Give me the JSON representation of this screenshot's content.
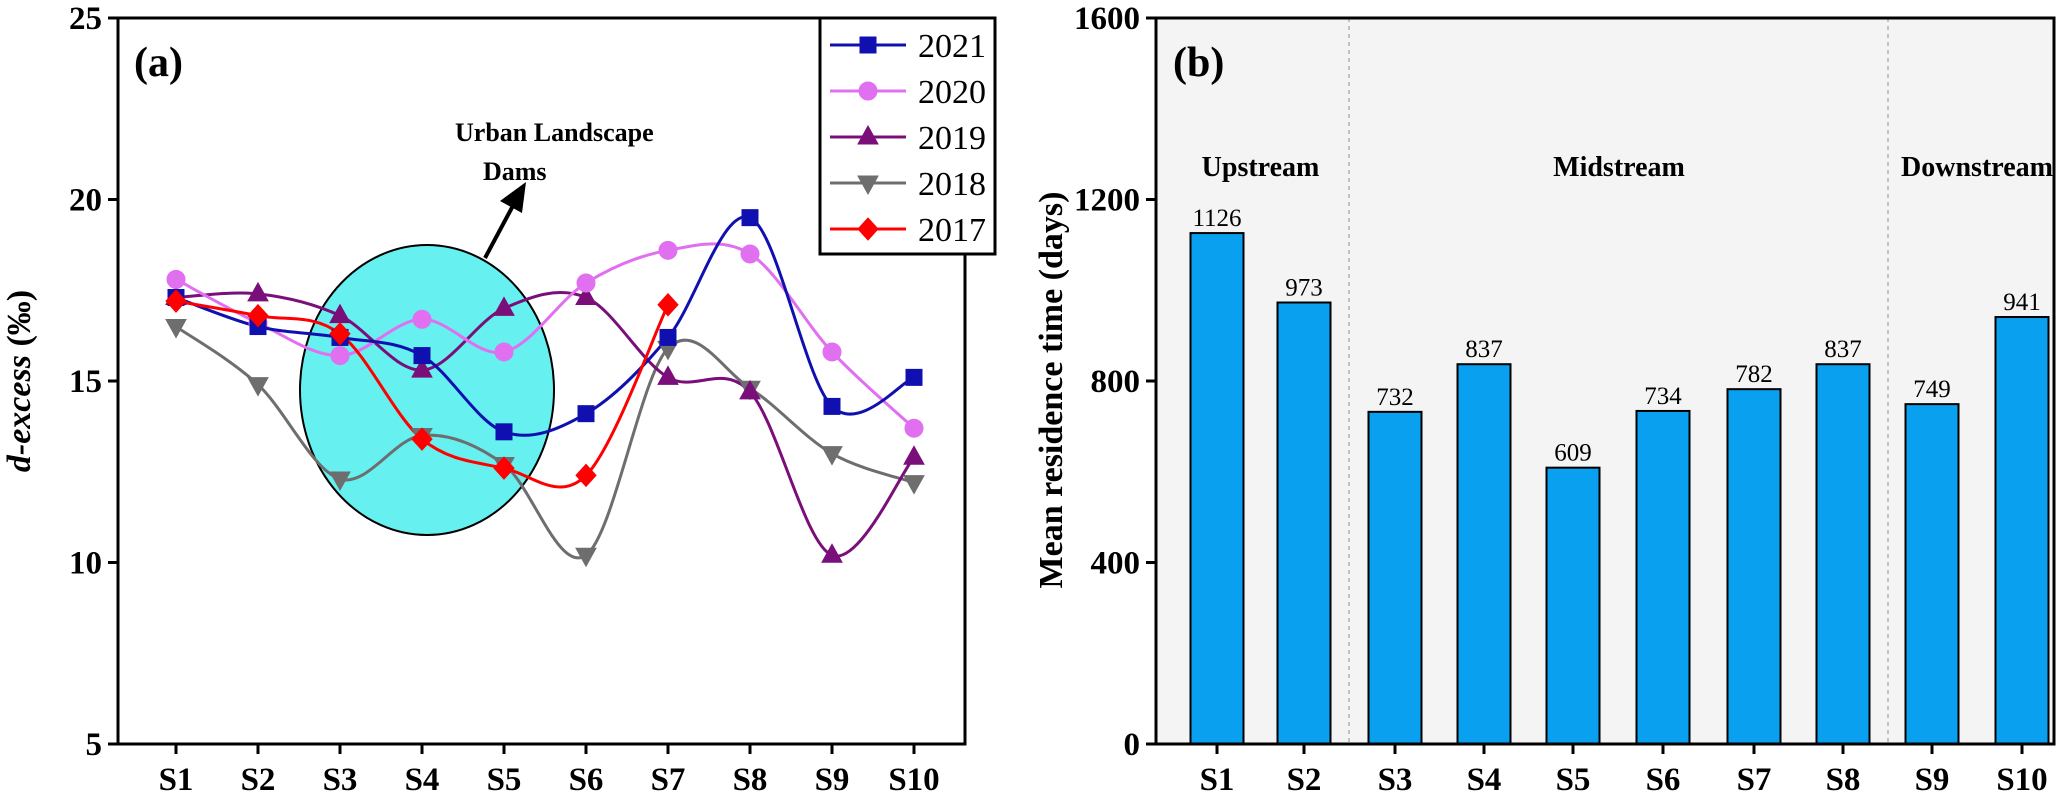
{
  "chart_data": [
    {
      "panel": "(a)",
      "type": "line",
      "title": "",
      "xlabel": "",
      "ylabel": "d-excess (‰)",
      "ylabel_italic_part": "d-excess",
      "ylabel_unit": " (‰)",
      "categories": [
        "S1",
        "S2",
        "S3",
        "S4",
        "S5",
        "S6",
        "S7",
        "S8",
        "S9",
        "S10"
      ],
      "ylim": [
        5,
        25
      ],
      "yticks": [
        "5",
        "10",
        "15",
        "20",
        "25"
      ],
      "annotation": {
        "line1": "Urban Landscape",
        "line2": "Dams"
      },
      "legend_position": "top-right",
      "series": [
        {
          "name": "2021",
          "color": "#1010b0",
          "marker": "square",
          "values": [
            17.3,
            16.5,
            16.2,
            15.7,
            13.6,
            14.1,
            16.2,
            19.5,
            14.3,
            15.1
          ]
        },
        {
          "name": "2020",
          "color": "#e070f0",
          "marker": "circle",
          "values": [
            17.8,
            16.6,
            15.7,
            16.7,
            15.8,
            17.7,
            18.6,
            18.5,
            15.8,
            13.7
          ]
        },
        {
          "name": "2019",
          "color": "#7a0f7a",
          "marker": "triangle-up",
          "values": [
            17.3,
            17.4,
            16.8,
            15.3,
            17.0,
            17.3,
            15.1,
            14.7,
            10.2,
            12.9
          ]
        },
        {
          "name": "2018",
          "color": "#6e6e6e",
          "marker": "triangle-down",
          "values": [
            16.5,
            14.9,
            12.3,
            13.5,
            12.7,
            10.2,
            15.9,
            14.8,
            13.0,
            12.2
          ]
        },
        {
          "name": "2017",
          "color": "#ff0000",
          "marker": "diamond",
          "values": [
            17.2,
            16.8,
            16.3,
            13.4,
            12.6,
            12.4,
            17.1,
            null,
            null,
            null
          ]
        }
      ]
    },
    {
      "panel": "(b)",
      "type": "bar",
      "title": "",
      "xlabel": "",
      "ylabel": "Mean residence time (days)",
      "categories": [
        "S1",
        "S2",
        "S3",
        "S4",
        "S5",
        "S6",
        "S7",
        "S8",
        "S9",
        "S10"
      ],
      "values": [
        1126,
        973,
        732,
        837,
        609,
        734,
        782,
        837,
        749,
        941
      ],
      "value_labels": [
        "1126",
        "973",
        "732",
        "837",
        "609",
        "734",
        "782",
        "837",
        "749",
        "941"
      ],
      "ylim": [
        0,
        1600
      ],
      "yticks": [
        "0",
        "400",
        "800",
        "1200",
        "1600"
      ],
      "bar_color": "#0aa0f0",
      "regions": [
        {
          "label": "Upstream",
          "start": 0,
          "end": 1
        },
        {
          "label": "Midstream",
          "start": 2,
          "end": 7
        },
        {
          "label": "Downstream",
          "start": 8,
          "end": 9
        }
      ]
    }
  ]
}
